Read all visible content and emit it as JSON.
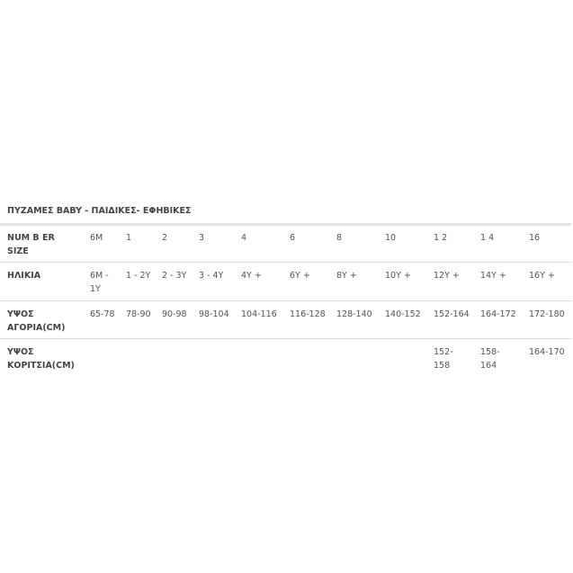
{
  "title": "ΠΥΖΑΜΕΣ BABY - ΠΑΙΔΙΚΕΣ- ΕΦΗΒΙΚΕΣ",
  "rows": [
    {
      "label": [
        "NUM B ER",
        "SIZE"
      ],
      "cells": [
        [
          "6M"
        ],
        [
          "1"
        ],
        [
          "2"
        ],
        [
          "3"
        ],
        [
          "4"
        ],
        [
          "6"
        ],
        [
          "8"
        ],
        [
          "10"
        ],
        [
          "1 2"
        ],
        [
          "1 4"
        ],
        [
          "16"
        ]
      ]
    },
    {
      "label": [
        "ΗΛΙΚΙΑ"
      ],
      "cells": [
        [
          "6M -",
          "1Y"
        ],
        [
          "1 - 2Y"
        ],
        [
          "2 - 3Y"
        ],
        [
          "3 - 4Y"
        ],
        [
          "4Y +"
        ],
        [
          "6Y +"
        ],
        [
          "8Y +"
        ],
        [
          "10Y +"
        ],
        [
          "12Y +"
        ],
        [
          "14Y +"
        ],
        [
          "16Y +"
        ]
      ]
    },
    {
      "label": [
        "ΥΨΟΣ",
        "ΑΓΟΡΙΑ(CM)"
      ],
      "cells": [
        [
          "65-78"
        ],
        [
          "78-90"
        ],
        [
          "90-98"
        ],
        [
          "98-104"
        ],
        [
          "104-116"
        ],
        [
          "116-128"
        ],
        [
          "128-140"
        ],
        [
          "140-152"
        ],
        [
          "152-164"
        ],
        [
          "164-172"
        ],
        [
          "172-180"
        ]
      ]
    },
    {
      "label": [
        "ΥΨΟΣ",
        "ΚΟΡΙΤΣΙΑ(CM)"
      ],
      "cells": [
        [],
        [],
        [],
        [],
        [],
        [],
        [],
        [],
        [
          "152-",
          "158"
        ],
        [
          "158-",
          "164"
        ],
        [
          "164-170"
        ]
      ]
    }
  ]
}
